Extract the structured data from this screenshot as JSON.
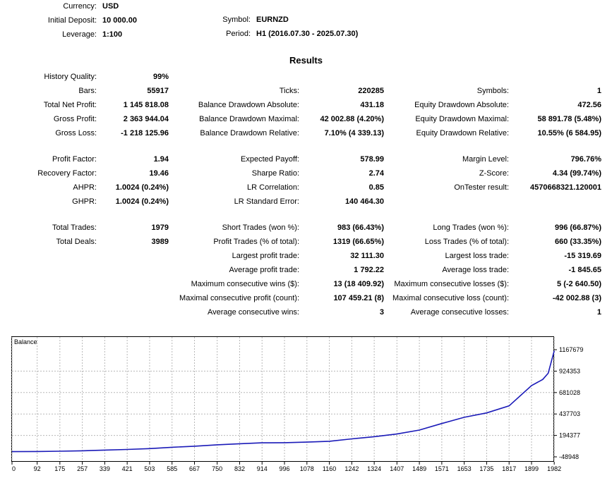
{
  "header": {
    "currency_label": "Currency:",
    "currency_value": "USD",
    "deposit_label": "Initial Deposit:",
    "deposit_value": "10 000.00",
    "leverage_label": "Leverage:",
    "leverage_value": "1:100",
    "symbol_label": "Symbol:",
    "symbol_value": "EURNZD",
    "period_label": "Period:",
    "period_value": "H1 (2016.07.30 - 2025.07.30)"
  },
  "results_title": "Results",
  "col1": [
    {
      "label": "History Quality:",
      "value": "99%"
    },
    {
      "label": "Bars:",
      "value": "55917"
    },
    {
      "label": "Total Net Profit:",
      "value": "1 145 818.08"
    },
    {
      "label": "Gross Profit:",
      "value": "2 363 944.04"
    },
    {
      "label": "Gross Loss:",
      "value": "-1 218 125.96"
    },
    {
      "label": "Profit Factor:",
      "value": "1.94"
    },
    {
      "label": "Recovery Factor:",
      "value": "19.46"
    },
    {
      "label": "AHPR:",
      "value": "1.0024 (0.24%)"
    },
    {
      "label": "GHPR:",
      "value": "1.0024 (0.24%)"
    },
    {
      "label": "Total Trades:",
      "value": "1979"
    },
    {
      "label": "Total Deals:",
      "value": "3989"
    }
  ],
  "col2": [
    {
      "label": "Ticks:",
      "value": "220285"
    },
    {
      "label": "Balance Drawdown Absolute:",
      "value": "431.18"
    },
    {
      "label": "Balance Drawdown Maximal:",
      "value": "42 002.88 (4.20%)"
    },
    {
      "label": "Balance Drawdown Relative:",
      "value": "7.10% (4 339.13)"
    },
    {
      "label": "Expected Payoff:",
      "value": "578.99"
    },
    {
      "label": "Sharpe Ratio:",
      "value": "2.74"
    },
    {
      "label": "LR Correlation:",
      "value": "0.85"
    },
    {
      "label": "LR Standard Error:",
      "value": "140 464.30"
    },
    {
      "label": "Short Trades (won %):",
      "value": "983 (66.43%)"
    },
    {
      "label": "Profit Trades (% of total):",
      "value": "1319 (66.65%)"
    },
    {
      "label": "Largest profit trade:",
      "value": "32 111.30"
    },
    {
      "label": "Average profit trade:",
      "value": "1 792.22"
    },
    {
      "label": "Maximum consecutive wins ($):",
      "value": "13 (18 409.92)"
    },
    {
      "label": "Maximal consecutive profit (count):",
      "value": "107 459.21 (8)"
    },
    {
      "label": "Average consecutive wins:",
      "value": "3"
    }
  ],
  "col3": [
    {
      "label": "Symbols:",
      "value": "1"
    },
    {
      "label": "Equity Drawdown Absolute:",
      "value": "472.56"
    },
    {
      "label": "Equity Drawdown Maximal:",
      "value": "58 891.78 (5.48%)"
    },
    {
      "label": "Equity Drawdown Relative:",
      "value": "10.55% (6 584.95)"
    },
    {
      "label": "Margin Level:",
      "value": "796.76%"
    },
    {
      "label": "Z-Score:",
      "value": "4.34 (99.74%)"
    },
    {
      "label": "OnTester result:",
      "value": "4570668321.120001"
    },
    {
      "label": "Long Trades (won %):",
      "value": "996 (66.87%)"
    },
    {
      "label": "Loss Trades (% of total):",
      "value": "660 (33.35%)"
    },
    {
      "label": "Largest loss trade:",
      "value": "-15 319.69"
    },
    {
      "label": "Average loss trade:",
      "value": "-1 845.65"
    },
    {
      "label": "Maximum consecutive losses ($):",
      "value": "5 (-2 640.50)"
    },
    {
      "label": "Maximal consecutive loss (count):",
      "value": "-42 002.88 (3)"
    },
    {
      "label": "Average consecutive losses:",
      "value": "1"
    }
  ],
  "chart_data": {
    "type": "line",
    "title": "Balance",
    "x_ticks": [
      "0",
      "92",
      "175",
      "257",
      "339",
      "421",
      "503",
      "585",
      "667",
      "750",
      "832",
      "914",
      "996",
      "1078",
      "1160",
      "1242",
      "1324",
      "1407",
      "1489",
      "1571",
      "1653",
      "1735",
      "1817",
      "1899",
      "1982"
    ],
    "y_ticks": [
      "1167679",
      "924353",
      "681028",
      "437703",
      "194377",
      "-48948"
    ],
    "xlim": [
      0,
      1979
    ],
    "ylim": [
      -48948,
      1167679
    ],
    "series": [
      {
        "x": [
          0,
          92,
          175,
          257,
          339,
          421,
          503,
          585,
          667,
          750,
          832,
          914,
          996,
          1078,
          1160,
          1242,
          1324,
          1407,
          1489,
          1571,
          1653,
          1735,
          1817,
          1899,
          1940,
          1960,
          1982
        ],
        "y": [
          10000,
          12000,
          15000,
          20000,
          28000,
          35000,
          45000,
          60000,
          72000,
          88000,
          100000,
          110000,
          112000,
          118000,
          128000,
          155000,
          180000,
          210000,
          255000,
          330000,
          400000,
          450000,
          530000,
          760000,
          830000,
          900000,
          1155818
        ]
      }
    ]
  }
}
